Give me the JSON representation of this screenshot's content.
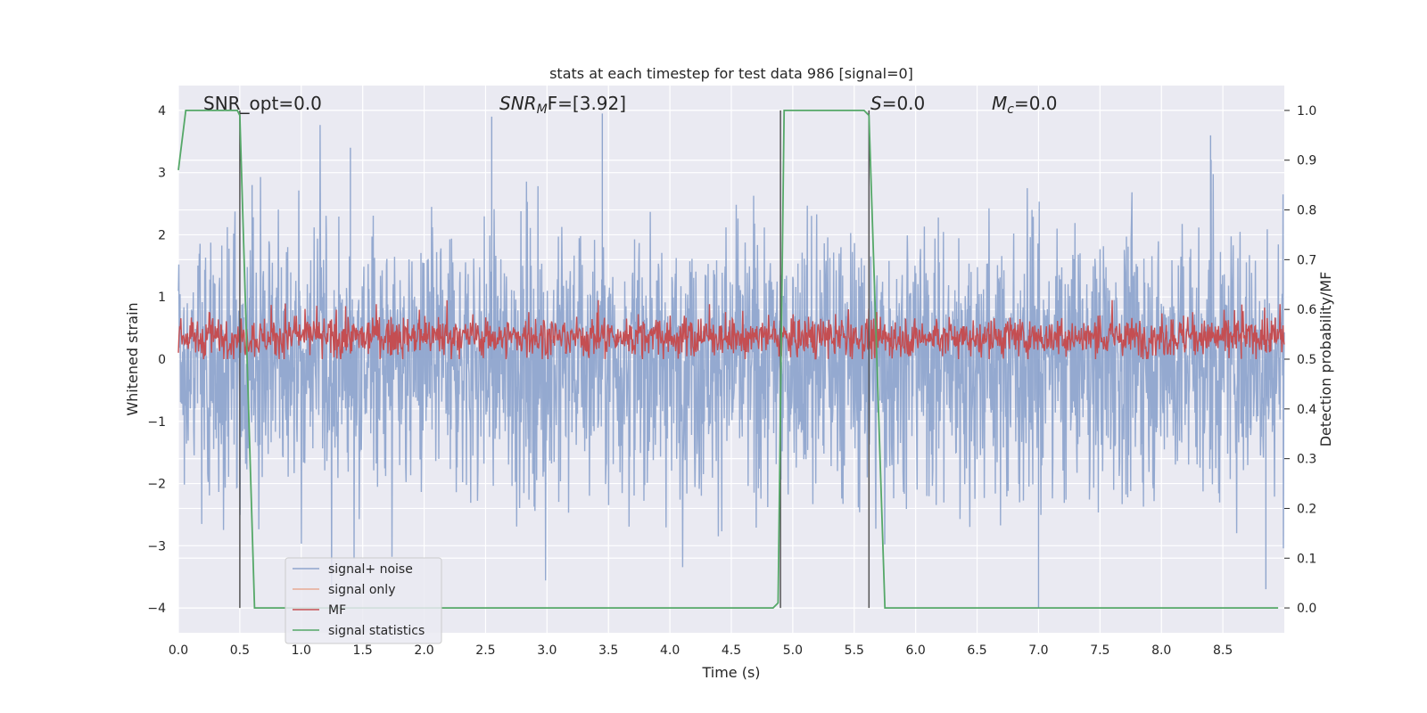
{
  "chart_data": {
    "type": "line",
    "title": "stats at each timestep for test data 986 [signal=0]",
    "xlabel": "Time (s)",
    "ylabel": "Whitened strain",
    "y2label": "Detection probability/MF",
    "xlim": [
      0,
      9.0
    ],
    "ylim": [
      -4.4,
      4.4
    ],
    "y2lim": [
      -0.05,
      1.05
    ],
    "x_ticks": [
      "0.0",
      "0.5",
      "1.0",
      "1.5",
      "2.0",
      "2.5",
      "3.0",
      "3.5",
      "4.0",
      "4.5",
      "5.0",
      "5.5",
      "6.0",
      "6.5",
      "7.0",
      "7.5",
      "8.0",
      "8.5"
    ],
    "y_ticks": [
      "−4",
      "−3",
      "−2",
      "−1",
      "0",
      "1",
      "2",
      "3",
      "4"
    ],
    "y2_ticks": [
      "0.0",
      "0.1",
      "0.2",
      "0.3",
      "0.4",
      "0.5",
      "0.6",
      "0.7",
      "0.8",
      "0.9",
      "1.0"
    ],
    "grid": true,
    "legend_position": "lower-left",
    "annotations": {
      "snr_opt": "SNR_opt=0.0",
      "snr_mf_base": "SNR",
      "snr_mf_sub": "M",
      "snr_mf_rest": "F=[3.92]",
      "s_base": "S",
      "s_rest": "=0.0",
      "mc_base": "M",
      "mc_sub": "c",
      "mc_rest": "=0.0"
    },
    "vertical_lines_x": [
      0.5,
      4.9,
      5.62
    ],
    "series": [
      {
        "name": "signal+ noise",
        "color": "#8fa5cd",
        "description_axis": "left",
        "sample_rate_hz": 2048,
        "envelope_typical": [
          -2.2,
          2.2
        ],
        "peaks": [
          [
            0.6,
            2.8
          ],
          [
            1.4,
            3.4
          ],
          [
            2.55,
            3.9
          ],
          [
            3.45,
            3.95
          ],
          [
            7.0,
            -4.0
          ],
          [
            8.4,
            3.6
          ],
          [
            8.85,
            -3.7
          ]
        ]
      },
      {
        "name": "signal only",
        "color": "#e8a994",
        "description_axis": "left",
        "values": []
      },
      {
        "name": "MF",
        "color": "#c44e52",
        "description_axis": "left",
        "envelope_typical": [
          0.0,
          0.8
        ],
        "peak": 0.95
      },
      {
        "name": "signal statistics",
        "color": "#55a868",
        "description_axis": "right",
        "x": [
          0.0,
          0.06,
          0.48,
          0.5,
          0.62,
          4.84,
          4.88,
          4.93,
          5.58,
          5.62,
          5.75,
          8.8,
          8.95
        ],
        "y": [
          0.88,
          1.0,
          1.0,
          0.99,
          0.0,
          0.0,
          0.01,
          1.0,
          1.0,
          0.99,
          0.0,
          0.0,
          0.0
        ]
      }
    ]
  }
}
